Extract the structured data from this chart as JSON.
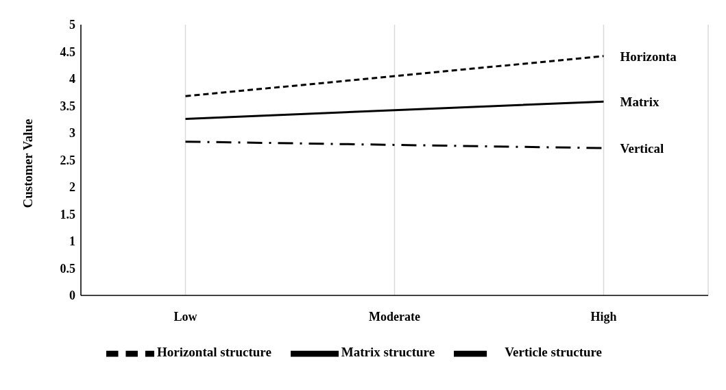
{
  "chart_data": {
    "type": "line",
    "ylabel": "Customer Value",
    "categories": [
      "Low",
      "Moderate",
      "High"
    ],
    "series": [
      {
        "name": "Verticle structure",
        "color": "#000000",
        "line_style": "dashdot",
        "values": [
          2.84,
          2.78,
          2.72
        ]
      },
      {
        "name": "Matrix structure",
        "color": "#000000",
        "line_style": "solid",
        "values": [
          3.26,
          3.42,
          3.58
        ]
      },
      {
        "name": "Horizontal structure",
        "color": "#000000",
        "line_style": "dashed",
        "values": [
          3.68,
          4.05,
          4.42
        ]
      }
    ],
    "ylim": [
      0,
      5
    ],
    "yticks": [
      0,
      0.5,
      1,
      1.5,
      2,
      2.5,
      3,
      3.5,
      4,
      4.5,
      5
    ],
    "grid": "x",
    "legend": "bottom",
    "marker": "none",
    "annotations": [
      {
        "text": "Horizonta",
        "x": "High",
        "y": 4.42
      },
      {
        "text": "Matrix",
        "x": "High",
        "y": 3.58
      },
      {
        "text": "Vertical",
        "x": "High",
        "y": 2.72
      }
    ]
  }
}
